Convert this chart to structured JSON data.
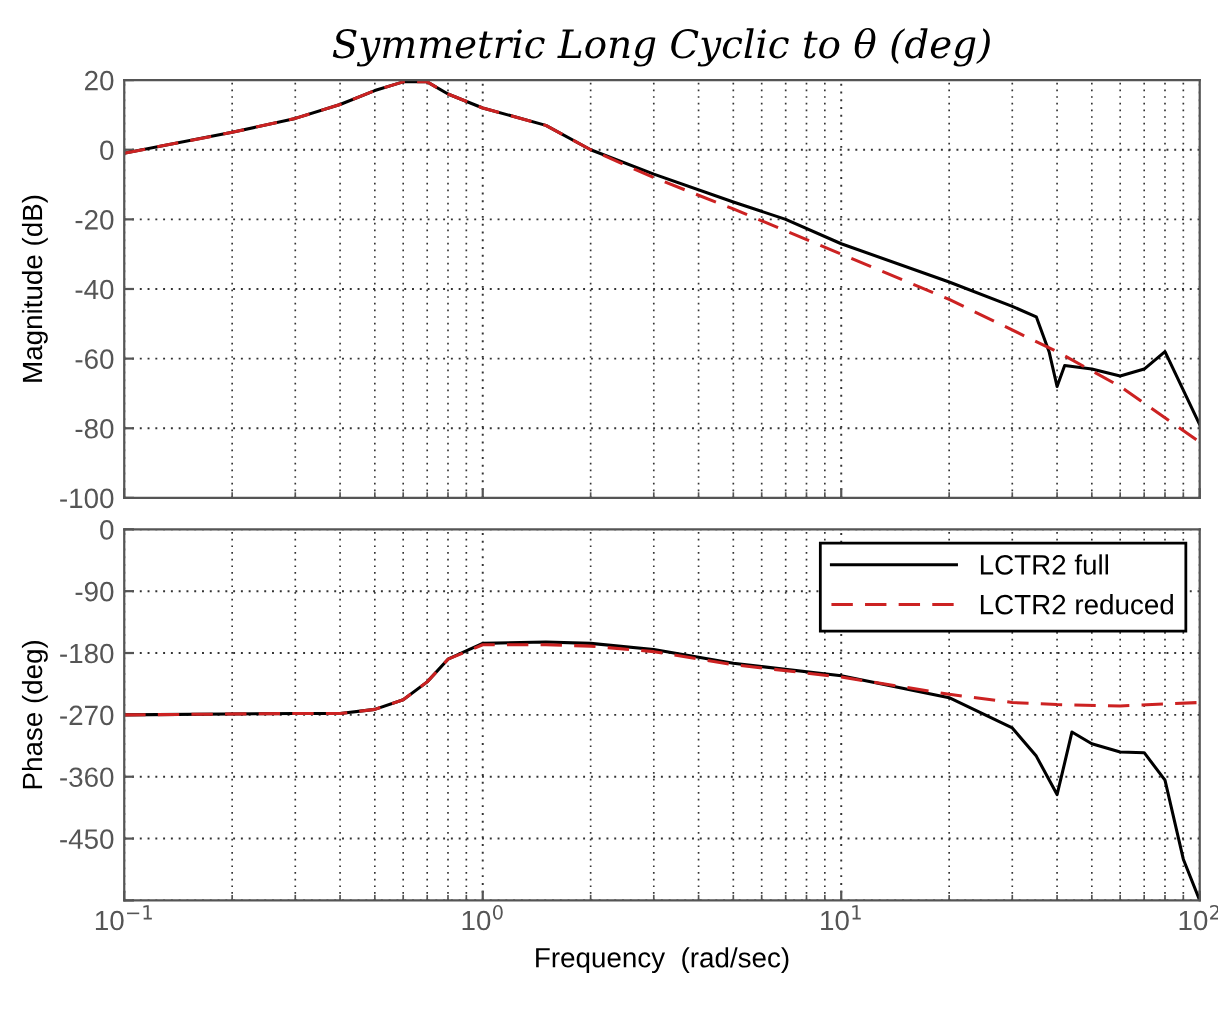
{
  "chart_data": [
    {
      "type": "line",
      "title": "Symmetric Long Cyclic to θ (deg)",
      "ylabel": "Magnitude (dB)",
      "log": "x",
      "grid": true,
      "tick_labels": "y",
      "xlim": [
        0.1,
        100
      ],
      "xticks": [
        {
          "value": 0.1,
          "label": null
        },
        {
          "value": 1,
          "label": null
        },
        {
          "value": 10,
          "label": null
        },
        {
          "value": 100,
          "label": null
        }
      ],
      "ylim": [
        -100,
        20
      ],
      "yticks": [
        -100,
        -80,
        -60,
        -40,
        -20,
        0,
        20
      ],
      "series": [
        {
          "color": "#000000",
          "line_style": "solid",
          "x": [
            0.1,
            0.2,
            0.3,
            0.4,
            0.5,
            0.6,
            0.7,
            0.8,
            1,
            1.5,
            2,
            3,
            5,
            7,
            10,
            20,
            30,
            35,
            38,
            40,
            42,
            50,
            60,
            70,
            80,
            100
          ],
          "values": [
            -1,
            5,
            9,
            13,
            17,
            19.5,
            19.5,
            16,
            12,
            7,
            0,
            -7,
            -15,
            -20,
            -27,
            -38,
            -45,
            -48,
            -58,
            -68,
            -62,
            -63,
            -65,
            -63,
            -58,
            -79
          ]
        },
        {
          "color": "#cc2222",
          "line_style": "dashed",
          "x": [
            0.1,
            0.2,
            0.3,
            0.4,
            0.5,
            0.6,
            0.7,
            0.8,
            1,
            1.5,
            2,
            3,
            5,
            10,
            20,
            40,
            60,
            100
          ],
          "values": [
            -1,
            5,
            9,
            13,
            17,
            19.5,
            19.5,
            16,
            12,
            7,
            0,
            -8,
            -17,
            -30,
            -43,
            -58,
            -68,
            -84
          ]
        }
      ]
    },
    {
      "type": "line",
      "xlabel": "Frequency  (rad/sec)",
      "ylabel": "Phase (deg)",
      "log": "x",
      "grid": true,
      "legend": "top right",
      "xlim": [
        0.1,
        100
      ],
      "xticks": [
        {
          "value": 0.1,
          "label": "10$^{−1}$"
        },
        {
          "value": 1,
          "label": "10$^{0}$"
        },
        {
          "value": 10,
          "label": "10$^{1}$"
        },
        {
          "value": 100,
          "label": "10$^{2}$"
        }
      ],
      "ylim": [
        -540,
        0
      ],
      "yticks": [
        {
          "value": -540,
          "label": null
        },
        -450,
        -360,
        -270,
        -180,
        -90,
        0
      ],
      "series": [
        {
          "name": "LCTR2 full",
          "color": "#000000",
          "line_style": "solid",
          "x": [
            0.1,
            0.3,
            0.4,
            0.5,
            0.6,
            0.7,
            0.8,
            1,
            1.5,
            2,
            3,
            5,
            10,
            20,
            30,
            35,
            40,
            42,
            44,
            50,
            60,
            70,
            80,
            90,
            100
          ],
          "values": [
            -270,
            -268,
            -268,
            -262,
            -248,
            -222,
            -189,
            -166,
            -164,
            -166,
            -175,
            -195,
            -213,
            -245,
            -289,
            -330,
            -386,
            -340,
            -295,
            -312,
            -324,
            -325,
            -365,
            -480,
            -540
          ]
        },
        {
          "name": "LCTR2 reduced",
          "color": "#cc2222",
          "line_style": "dashed",
          "x": [
            0.1,
            0.3,
            0.4,
            0.5,
            0.6,
            0.7,
            0.8,
            1,
            1.5,
            2,
            3,
            5,
            10,
            20,
            30,
            40,
            60,
            100
          ],
          "values": [
            -270,
            -268,
            -268,
            -262,
            -248,
            -222,
            -189,
            -168,
            -168,
            -170,
            -178,
            -197,
            -215,
            -240,
            -252,
            -255,
            -257,
            -252
          ]
        }
      ]
    }
  ]
}
